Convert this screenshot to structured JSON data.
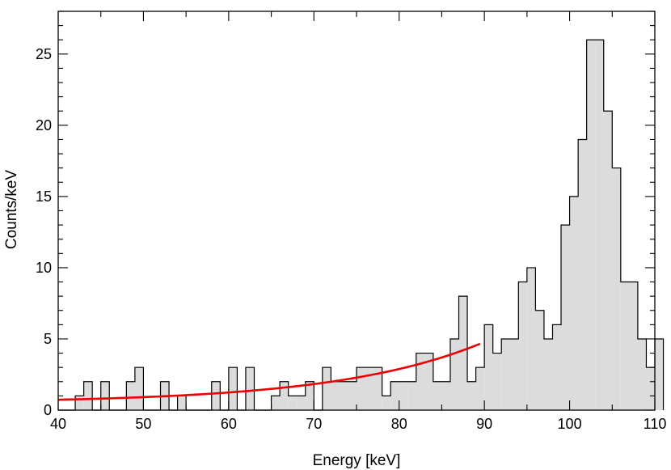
{
  "chart_data": {
    "type": "bar",
    "style": "step-histogram",
    "xlabel": "Energy [keV]",
    "ylabel": "Counts/keV",
    "xlim": [
      40,
      110
    ],
    "ylim": [
      0,
      28
    ],
    "x_ticks": [
      40,
      50,
      60,
      70,
      80,
      90,
      100,
      110
    ],
    "y_ticks": [
      0,
      5,
      10,
      15,
      20,
      25
    ],
    "bin_width": 1,
    "bin_start": 40,
    "values": [
      0,
      0,
      1,
      2,
      0,
      2,
      0,
      0,
      2,
      3,
      0,
      0,
      2,
      0,
      1,
      0,
      0,
      0,
      2,
      0,
      3,
      0,
      3,
      0,
      0,
      1,
      2,
      1,
      1,
      2,
      0,
      3,
      2,
      2,
      2,
      3,
      3,
      3,
      1,
      2,
      2,
      2,
      4,
      4,
      2,
      2,
      5,
      8,
      2,
      3,
      6,
      4,
      5,
      5,
      9,
      10,
      7,
      5,
      6,
      13,
      15,
      19,
      26,
      26,
      21,
      17,
      9,
      9,
      5,
      3,
      5
    ],
    "histogram_fill": "#dcdcdc",
    "histogram_edge": "#000000",
    "fit_curve": {
      "color": "#ee0000",
      "x_range": [
        40,
        89.5
      ],
      "model": "A + B*exp(C*(x-40))",
      "A": 0.5,
      "B": 0.23,
      "C": 0.0585
    }
  }
}
